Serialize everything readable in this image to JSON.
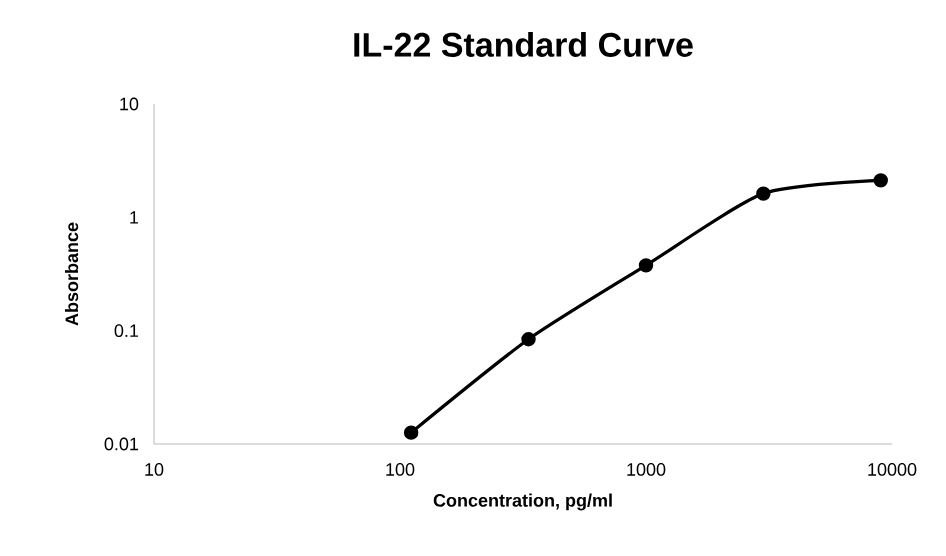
{
  "chart_data": {
    "type": "line",
    "title": "IL-22 Standard Curve",
    "xlabel": "Concentration, pg/ml",
    "ylabel": "Absorbance",
    "x": [
      111,
      333,
      1000,
      3000,
      9000
    ],
    "series": [
      {
        "color": "#000000",
        "values": [
          0.0126,
          0.084,
          0.377,
          1.62,
          2.12
        ]
      }
    ],
    "log": "xy",
    "xlim": [
      10,
      10000
    ],
    "ylim": [
      0.01,
      10
    ],
    "xticks": [
      10,
      100,
      1000,
      10000
    ],
    "yticks": [
      0.01,
      0.1,
      1,
      10
    ],
    "marker": "circle",
    "line_style": "solid"
  }
}
